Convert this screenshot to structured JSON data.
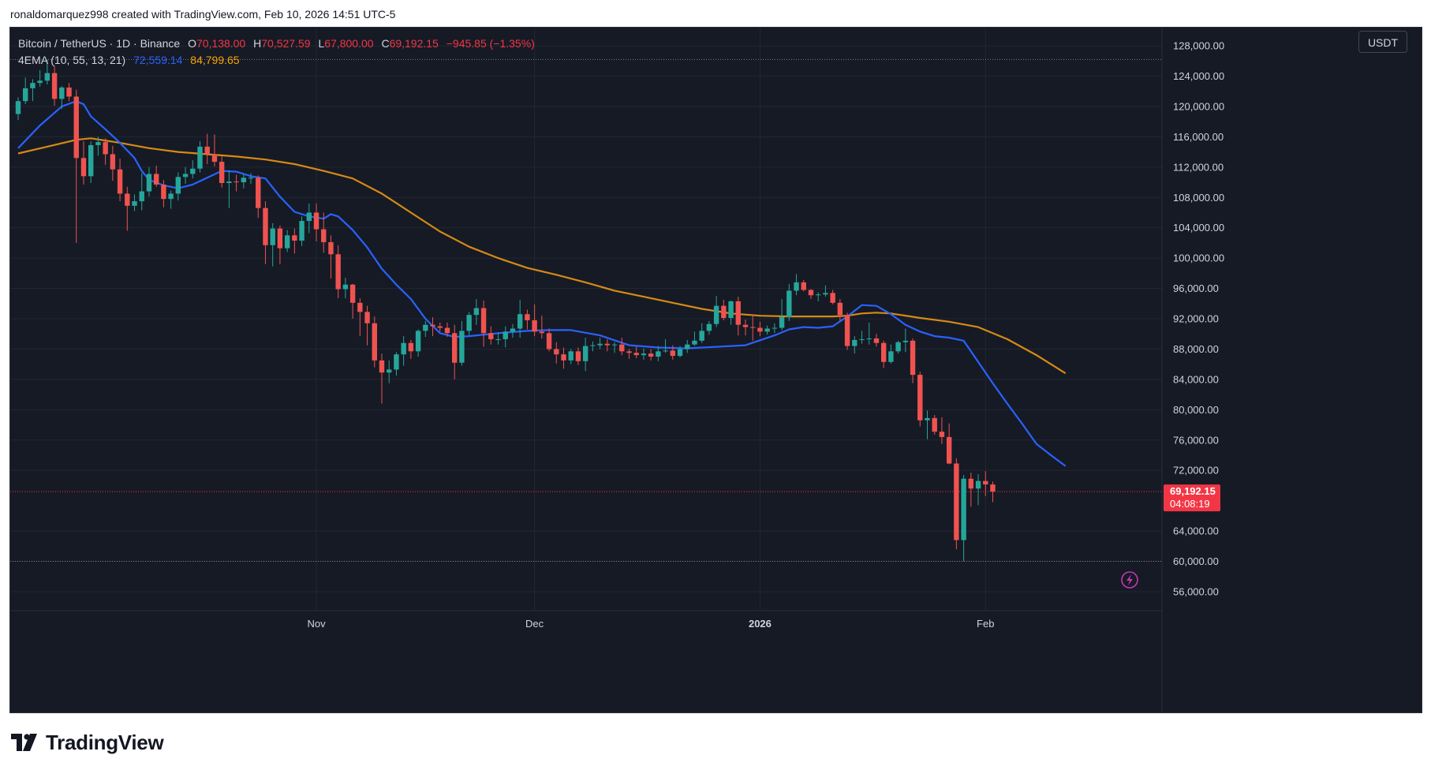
{
  "header": {
    "credit": "ronaldomarquez998 created with TradingView.com, Feb 10, 2026 14:51 UTC-5"
  },
  "legend": {
    "symbol": "Bitcoin / TetherUS · 1D · Binance",
    "o_label": "O",
    "o": "70,138.00",
    "h_label": "H",
    "h": "70,527.59",
    "l_label": "L",
    "l": "67,800.00",
    "c_label": "C",
    "c": "69,192.15",
    "change": "−945.85 (−1.35%)",
    "ema_label": "4EMA (10, 55, 13, 21)",
    "ema_fast": "72,559.14",
    "ema_slow": "84,799.65"
  },
  "currency": "USDT",
  "price_tag": {
    "price": "69,192.15",
    "countdown": "04:08:19"
  },
  "colors": {
    "bg": "#161a25",
    "up": "#26a69a",
    "down": "#ef5350",
    "ema_fast": "#2962ff",
    "ema_slow": "#d68a15",
    "text": "#d1d4dc",
    "grid": "#232734"
  },
  "brand": {
    "name": "TradingView"
  },
  "chart_data": {
    "type": "candlestick",
    "title": "Bitcoin / TetherUS · 1D · Binance",
    "ylim": [
      53600,
      130400
    ],
    "y_ticks": [
      "128,000.00",
      "124,000.00",
      "120,000.00",
      "116,000.00",
      "112,000.00",
      "108,000.00",
      "104,000.00",
      "100,000.00",
      "96,000.00",
      "92,000.00",
      "88,000.00",
      "84,000.00",
      "80,000.00",
      "76,000.00",
      "72,000.00",
      "64,000.00",
      "60,000.00",
      "56,000.00"
    ],
    "x_ticks": [
      {
        "label": "Nov",
        "index": 41,
        "bold": false
      },
      {
        "label": "Dec",
        "index": 71,
        "bold": false
      },
      {
        "label": "2026",
        "index": 102,
        "bold": true
      },
      {
        "label": "Feb",
        "index": 133,
        "bold": false
      }
    ],
    "ref_lines": [
      126200,
      60000
    ],
    "last_price": 69192.15,
    "candles": [
      [
        119000,
        121200,
        118200,
        120700
      ],
      [
        120700,
        123800,
        120300,
        122400
      ],
      [
        122400,
        123600,
        120700,
        123100
      ],
      [
        123100,
        124800,
        122600,
        123400
      ],
      [
        123400,
        126200,
        122900,
        124400
      ],
      [
        124400,
        125400,
        120100,
        121000
      ],
      [
        121000,
        122700,
        119700,
        122500
      ],
      [
        122500,
        123100,
        120700,
        121300
      ],
      [
        121300,
        122200,
        102000,
        113200
      ],
      [
        113200,
        115400,
        109700,
        110800
      ],
      [
        110800,
        115400,
        109900,
        114900
      ],
      [
        114900,
        116000,
        113500,
        115300
      ],
      [
        115300,
        115800,
        112300,
        113700
      ],
      [
        113700,
        114800,
        110200,
        111700
      ],
      [
        111700,
        113100,
        107500,
        108500
      ],
      [
        108500,
        109400,
        103600,
        106900
      ],
      [
        106900,
        108400,
        106200,
        107500
      ],
      [
        107500,
        111200,
        106300,
        108800
      ],
      [
        108800,
        112000,
        108100,
        111100
      ],
      [
        111100,
        112200,
        109400,
        109700
      ],
      [
        109700,
        110300,
        106700,
        107800
      ],
      [
        107800,
        108900,
        106500,
        108500
      ],
      [
        108500,
        111300,
        107600,
        110700
      ],
      [
        110700,
        112000,
        109800,
        111100
      ],
      [
        111100,
        112900,
        110500,
        111800
      ],
      [
        111800,
        115400,
        111300,
        114700
      ],
      [
        114700,
        116400,
        112400,
        113700
      ],
      [
        113700,
        116300,
        112100,
        112700
      ],
      [
        112700,
        113400,
        109300,
        109900
      ],
      [
        109900,
        111600,
        106600,
        110100
      ],
      [
        110100,
        111000,
        108800,
        110000
      ],
      [
        110000,
        111100,
        109200,
        110600
      ],
      [
        110600,
        111200,
        109800,
        110600
      ],
      [
        110600,
        110900,
        105300,
        106600
      ],
      [
        106600,
        107500,
        99200,
        101700
      ],
      [
        101700,
        104600,
        98900,
        103900
      ],
      [
        103900,
        104300,
        99200,
        101300
      ],
      [
        101300,
        103700,
        100800,
        103000
      ],
      [
        103000,
        103900,
        100600,
        102300
      ],
      [
        102300,
        105500,
        101600,
        104900
      ],
      [
        104900,
        107200,
        103300,
        106000
      ],
      [
        106000,
        107200,
        102200,
        103800
      ],
      [
        103800,
        106000,
        100700,
        102100
      ],
      [
        102100,
        103000,
        97300,
        100500
      ],
      [
        100500,
        101700,
        94700,
        95900
      ],
      [
        95900,
        97400,
        94700,
        96500
      ],
      [
        96500,
        96600,
        92000,
        94100
      ],
      [
        94100,
        94700,
        89700,
        92900
      ],
      [
        92900,
        93700,
        88500,
        91400
      ],
      [
        91400,
        92300,
        85600,
        86500
      ],
      [
        86500,
        87400,
        80800,
        84900
      ],
      [
        84900,
        86500,
        83500,
        85300
      ],
      [
        85300,
        87600,
        84500,
        87300
      ],
      [
        87300,
        89700,
        85800,
        88800
      ],
      [
        88800,
        89200,
        86700,
        87700
      ],
      [
        87700,
        90600,
        87000,
        90400
      ],
      [
        90400,
        91700,
        89600,
        91200
      ],
      [
        91200,
        92200,
        89700,
        91000
      ],
      [
        91000,
        91500,
        90300,
        90800
      ],
      [
        90800,
        91500,
        89600,
        90100
      ],
      [
        90100,
        91200,
        84000,
        86200
      ],
      [
        86200,
        91700,
        85800,
        90400
      ],
      [
        90400,
        92900,
        89800,
        92500
      ],
      [
        92500,
        94600,
        91200,
        93400
      ],
      [
        93400,
        94400,
        88300,
        90100
      ],
      [
        90100,
        91000,
        88600,
        89300
      ],
      [
        89300,
        90200,
        88600,
        89300
      ],
      [
        89300,
        91000,
        88200,
        90300
      ],
      [
        90300,
        91300,
        89500,
        90700
      ],
      [
        90700,
        94500,
        89500,
        92600
      ],
      [
        92600,
        93200,
        90600,
        91800
      ],
      [
        91800,
        93900,
        89700,
        90300
      ],
      [
        90300,
        92400,
        89400,
        90100
      ],
      [
        90100,
        90700,
        87700,
        88000
      ],
      [
        88000,
        88900,
        86100,
        87300
      ],
      [
        87300,
        88200,
        85400,
        86500
      ],
      [
        86500,
        88000,
        86000,
        87700
      ],
      [
        87700,
        88200,
        85900,
        86400
      ],
      [
        86400,
        89500,
        85100,
        88400
      ],
      [
        88400,
        89000,
        87700,
        88500
      ],
      [
        88500,
        89500,
        88000,
        88700
      ],
      [
        88700,
        89300,
        87700,
        88500
      ],
      [
        88500,
        88900,
        87500,
        88600
      ],
      [
        88600,
        89500,
        87200,
        87700
      ],
      [
        87700,
        88000,
        86700,
        87500
      ],
      [
        87500,
        88300,
        86800,
        87200
      ],
      [
        87200,
        88100,
        86600,
        87400
      ],
      [
        87400,
        88000,
        86500,
        87000
      ],
      [
        87000,
        88400,
        86400,
        87700
      ],
      [
        87700,
        89300,
        87500,
        87800
      ],
      [
        87800,
        88500,
        86600,
        87100
      ],
      [
        87100,
        88400,
        86900,
        88000
      ],
      [
        88000,
        89200,
        87500,
        88600
      ],
      [
        88600,
        90300,
        88400,
        89100
      ],
      [
        89100,
        91400,
        88800,
        90400
      ],
      [
        90400,
        91700,
        89900,
        91300
      ],
      [
        91300,
        95000,
        90900,
        93700
      ],
      [
        93700,
        94500,
        91800,
        92100
      ],
      [
        92100,
        94400,
        91200,
        94300
      ],
      [
        94300,
        94900,
        89800,
        91200
      ],
      [
        91200,
        91900,
        89800,
        90900
      ],
      [
        90900,
        92500,
        89100,
        90800
      ],
      [
        90800,
        91600,
        89700,
        90300
      ],
      [
        90300,
        91100,
        89900,
        90700
      ],
      [
        90700,
        91400,
        90100,
        90800
      ],
      [
        90800,
        94600,
        90500,
        92200
      ],
      [
        92200,
        96600,
        91700,
        95700
      ],
      [
        95700,
        97900,
        95100,
        96800
      ],
      [
        96800,
        97100,
        95600,
        95800
      ],
      [
        95800,
        95900,
        94600,
        95100
      ],
      [
        95100,
        95500,
        94300,
        95200
      ],
      [
        95200,
        96400,
        94900,
        95400
      ],
      [
        95400,
        95800,
        93900,
        94100
      ],
      [
        94100,
        94600,
        91700,
        92500
      ],
      [
        92500,
        92800,
        87900,
        88400
      ],
      [
        88400,
        89700,
        87400,
        89200
      ],
      [
        89200,
        90400,
        88700,
        89300
      ],
      [
        89300,
        91500,
        88600,
        89400
      ],
      [
        89400,
        90000,
        88300,
        88800
      ],
      [
        88800,
        89100,
        85500,
        86300
      ],
      [
        86300,
        88600,
        86100,
        87700
      ],
      [
        87700,
        89100,
        87400,
        88900
      ],
      [
        88900,
        90700,
        87600,
        89100
      ],
      [
        89100,
        89400,
        83500,
        84600
      ],
      [
        84600,
        85000,
        77800,
        78600
      ],
      [
        78600,
        79900,
        76100,
        78900
      ],
      [
        78900,
        79300,
        76700,
        77100
      ],
      [
        77100,
        79000,
        75500,
        76400
      ],
      [
        76400,
        78200,
        72800,
        72900
      ],
      [
        72900,
        73600,
        61600,
        62800
      ],
      [
        62800,
        71400,
        60000,
        70900
      ],
      [
        70900,
        71700,
        67200,
        69600
      ],
      [
        69600,
        71500,
        67400,
        70600
      ],
      [
        70600,
        71900,
        68600,
        70138
      ],
      [
        70138,
        70528,
        67800,
        69192
      ]
    ],
    "ema_fast": [
      [
        0,
        114500
      ],
      [
        3,
        117500
      ],
      [
        6,
        120000
      ],
      [
        8,
        120700
      ],
      [
        9,
        120300
      ],
      [
        10,
        118700
      ],
      [
        12,
        117000
      ],
      [
        14,
        115200
      ],
      [
        16,
        113200
      ],
      [
        17,
        111500
      ],
      [
        18,
        110300
      ],
      [
        20,
        109600
      ],
      [
        22,
        109200
      ],
      [
        24,
        109700
      ],
      [
        26,
        110600
      ],
      [
        28,
        111500
      ],
      [
        30,
        111400
      ],
      [
        32,
        110800
      ],
      [
        34,
        110500
      ],
      [
        36,
        108100
      ],
      [
        38,
        106100
      ],
      [
        40,
        105500
      ],
      [
        42,
        105200
      ],
      [
        43,
        105800
      ],
      [
        44,
        105500
      ],
      [
        46,
        103700
      ],
      [
        48,
        101400
      ],
      [
        50,
        98600
      ],
      [
        52,
        96500
      ],
      [
        54,
        94600
      ],
      [
        56,
        92000
      ],
      [
        58,
        90100
      ],
      [
        60,
        89600
      ],
      [
        62,
        89700
      ],
      [
        66,
        90100
      ],
      [
        70,
        90400
      ],
      [
        73,
        90500
      ],
      [
        76,
        90500
      ],
      [
        80,
        89800
      ],
      [
        84,
        88500
      ],
      [
        88,
        88200
      ],
      [
        92,
        88100
      ],
      [
        96,
        88300
      ],
      [
        100,
        88500
      ],
      [
        104,
        89800
      ],
      [
        106,
        90600
      ],
      [
        108,
        90900
      ],
      [
        110,
        90800
      ],
      [
        112,
        91000
      ],
      [
        114,
        92300
      ],
      [
        116,
        93800
      ],
      [
        118,
        93700
      ],
      [
        120,
        92600
      ],
      [
        122,
        91200
      ],
      [
        124,
        90300
      ],
      [
        126,
        89700
      ],
      [
        128,
        89500
      ],
      [
        130,
        89100
      ],
      [
        132,
        86300
      ],
      [
        134,
        83500
      ],
      [
        136,
        80800
      ],
      [
        138,
        78200
      ],
      [
        140,
        75500
      ],
      [
        142,
        74000
      ],
      [
        144,
        72559
      ]
    ],
    "ema_slow": [
      [
        0,
        113800
      ],
      [
        4,
        114700
      ],
      [
        8,
        115600
      ],
      [
        10,
        115800
      ],
      [
        14,
        115200
      ],
      [
        18,
        114500
      ],
      [
        22,
        114000
      ],
      [
        26,
        113700
      ],
      [
        30,
        113400
      ],
      [
        34,
        113000
      ],
      [
        38,
        112400
      ],
      [
        42,
        111500
      ],
      [
        46,
        110500
      ],
      [
        50,
        108500
      ],
      [
        54,
        106000
      ],
      [
        58,
        103500
      ],
      [
        62,
        101500
      ],
      [
        66,
        100000
      ],
      [
        70,
        98700
      ],
      [
        74,
        97800
      ],
      [
        78,
        96800
      ],
      [
        82,
        95700
      ],
      [
        86,
        94900
      ],
      [
        90,
        94100
      ],
      [
        94,
        93300
      ],
      [
        98,
        92700
      ],
      [
        102,
        92400
      ],
      [
        106,
        92300
      ],
      [
        110,
        92300
      ],
      [
        112,
        92300
      ],
      [
        114,
        92400
      ],
      [
        116,
        92700
      ],
      [
        118,
        92800
      ],
      [
        120,
        92700
      ],
      [
        124,
        92100
      ],
      [
        128,
        91600
      ],
      [
        132,
        90900
      ],
      [
        136,
        89300
      ],
      [
        140,
        87200
      ],
      [
        144,
        84800
      ]
    ]
  }
}
